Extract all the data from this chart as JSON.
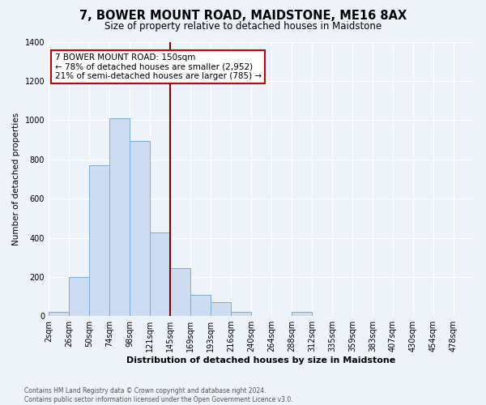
{
  "title": "7, BOWER MOUNT ROAD, MAIDSTONE, ME16 8AX",
  "subtitle": "Size of property relative to detached houses in Maidstone",
  "xlabel": "Distribution of detached houses by size in Maidstone",
  "ylabel": "Number of detached properties",
  "footnote1": "Contains HM Land Registry data © Crown copyright and database right 2024.",
  "footnote2": "Contains public sector information licensed under the Open Government Licence v3.0.",
  "bin_labels": [
    "2sqm",
    "26sqm",
    "50sqm",
    "74sqm",
    "98sqm",
    "121sqm",
    "145sqm",
    "169sqm",
    "193sqm",
    "216sqm",
    "240sqm",
    "264sqm",
    "288sqm",
    "312sqm",
    "335sqm",
    "359sqm",
    "383sqm",
    "407sqm",
    "430sqm",
    "454sqm",
    "478sqm"
  ],
  "bar_heights": [
    20,
    200,
    770,
    1010,
    895,
    425,
    245,
    110,
    70,
    20,
    0,
    0,
    20,
    0,
    0,
    0,
    0,
    0,
    0,
    0,
    0
  ],
  "bar_color": "#cddcf0",
  "bar_edge_color": "#7baad4",
  "vline_label_idx": 6,
  "vline_color": "#8b0000",
  "annotation_title": "7 BOWER MOUNT ROAD: 150sqm",
  "annotation_line1": "← 78% of detached houses are smaller (2,952)",
  "annotation_line2": "21% of semi-detached houses are larger (785) →",
  "annotation_box_facecolor": "#ffffff",
  "annotation_box_edgecolor": "#cc0000",
  "ylim": [
    0,
    1400
  ],
  "yticks": [
    0,
    200,
    400,
    600,
    800,
    1000,
    1200,
    1400
  ],
  "background_color": "#eef2f9",
  "grid_color": "#ffffff",
  "title_fontsize": 10.5,
  "subtitle_fontsize": 8.5,
  "xlabel_fontsize": 8,
  "ylabel_fontsize": 7.5,
  "tick_fontsize": 7,
  "annot_fontsize": 7.5,
  "footnote_fontsize": 5.5
}
